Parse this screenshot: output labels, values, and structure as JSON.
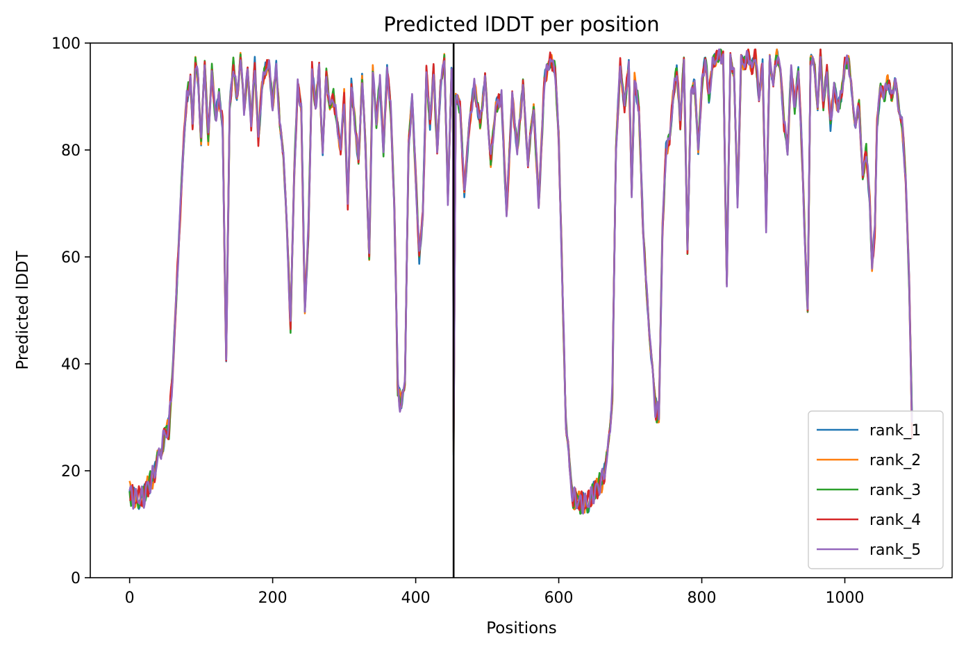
{
  "chart_data": {
    "type": "line",
    "title": "Predicted lDDT per position",
    "xlabel": "Positions",
    "ylabel": "Predicted lDDT",
    "xlim": [
      -55,
      1150
    ],
    "ylim": [
      0,
      100
    ],
    "xticks": [
      0,
      200,
      400,
      600,
      800,
      1000
    ],
    "yticks": [
      0,
      20,
      40,
      60,
      80,
      100
    ],
    "grid": false,
    "legend_position": "lower right",
    "vertical_line": {
      "x": 453,
      "color": "#000000"
    },
    "base_profile": [
      [
        0,
        16
      ],
      [
        5,
        15
      ],
      [
        10,
        15
      ],
      [
        15,
        15
      ],
      [
        20,
        15
      ],
      [
        25,
        17
      ],
      [
        30,
        18
      ],
      [
        35,
        20
      ],
      [
        40,
        22
      ],
      [
        45,
        25
      ],
      [
        50,
        27
      ],
      [
        55,
        28
      ],
      [
        60,
        38
      ],
      [
        65,
        52
      ],
      [
        70,
        66
      ],
      [
        75,
        80
      ],
      [
        80,
        90
      ],
      [
        85,
        93
      ],
      [
        88,
        85
      ],
      [
        92,
        96
      ],
      [
        96,
        93
      ],
      [
        100,
        82
      ],
      [
        105,
        96
      ],
      [
        110,
        82
      ],
      [
        115,
        95
      ],
      [
        120,
        86
      ],
      [
        125,
        90
      ],
      [
        130,
        85
      ],
      [
        135,
        41
      ],
      [
        140,
        88
      ],
      [
        145,
        96
      ],
      [
        150,
        90
      ],
      [
        155,
        97
      ],
      [
        160,
        88
      ],
      [
        165,
        95
      ],
      [
        170,
        85
      ],
      [
        175,
        96
      ],
      [
        180,
        82
      ],
      [
        185,
        92
      ],
      [
        190,
        95
      ],
      [
        195,
        96
      ],
      [
        200,
        88
      ],
      [
        205,
        96
      ],
      [
        210,
        84
      ],
      [
        215,
        80
      ],
      [
        220,
        65
      ],
      [
        225,
        47
      ],
      [
        230,
        75
      ],
      [
        235,
        92
      ],
      [
        240,
        88
      ],
      [
        245,
        50
      ],
      [
        250,
        65
      ],
      [
        255,
        95
      ],
      [
        260,
        88
      ],
      [
        265,
        95
      ],
      [
        270,
        80
      ],
      [
        275,
        94
      ],
      [
        280,
        88
      ],
      [
        285,
        90
      ],
      [
        290,
        85
      ],
      [
        295,
        80
      ],
      [
        300,
        90
      ],
      [
        305,
        70
      ],
      [
        310,
        92
      ],
      [
        315,
        85
      ],
      [
        320,
        78
      ],
      [
        325,
        93
      ],
      [
        330,
        80
      ],
      [
        335,
        60
      ],
      [
        340,
        95
      ],
      [
        345,
        85
      ],
      [
        350,
        93
      ],
      [
        355,
        80
      ],
      [
        360,
        95
      ],
      [
        365,
        88
      ],
      [
        370,
        70
      ],
      [
        375,
        36
      ],
      [
        380,
        31
      ],
      [
        385,
        38
      ],
      [
        390,
        80
      ],
      [
        395,
        90
      ],
      [
        400,
        75
      ],
      [
        405,
        60
      ],
      [
        410,
        68
      ],
      [
        415,
        95
      ],
      [
        420,
        85
      ],
      [
        425,
        95
      ],
      [
        430,
        80
      ],
      [
        435,
        92
      ],
      [
        440,
        98
      ],
      [
        445,
        70
      ],
      [
        450,
        95
      ],
      [
        452,
        94
      ],
      [
        453,
        25
      ],
      [
        456,
        90
      ],
      [
        462,
        88
      ],
      [
        468,
        72
      ],
      [
        475,
        85
      ],
      [
        482,
        92
      ],
      [
        490,
        85
      ],
      [
        497,
        93
      ],
      [
        505,
        78
      ],
      [
        512,
        88
      ],
      [
        520,
        90
      ],
      [
        527,
        68
      ],
      [
        535,
        90
      ],
      [
        542,
        80
      ],
      [
        550,
        92
      ],
      [
        557,
        78
      ],
      [
        565,
        88
      ],
      [
        572,
        70
      ],
      [
        580,
        93
      ],
      [
        588,
        97
      ],
      [
        595,
        95
      ],
      [
        600,
        82
      ],
      [
        605,
        55
      ],
      [
        610,
        30
      ],
      [
        615,
        20
      ],
      [
        620,
        15
      ],
      [
        630,
        14
      ],
      [
        640,
        14
      ],
      [
        650,
        16
      ],
      [
        660,
        18
      ],
      [
        668,
        22
      ],
      [
        675,
        35
      ],
      [
        680,
        80
      ],
      [
        686,
        96
      ],
      [
        692,
        88
      ],
      [
        698,
        96
      ],
      [
        702,
        72
      ],
      [
        706,
        93
      ],
      [
        712,
        88
      ],
      [
        718,
        65
      ],
      [
        722,
        55
      ],
      [
        726,
        48
      ],
      [
        730,
        40
      ],
      [
        735,
        32
      ],
      [
        740,
        30
      ],
      [
        745,
        65
      ],
      [
        750,
        80
      ],
      [
        755,
        82
      ],
      [
        760,
        90
      ],
      [
        765,
        95
      ],
      [
        770,
        85
      ],
      [
        775,
        97
      ],
      [
        780,
        62
      ],
      [
        785,
        90
      ],
      [
        790,
        93
      ],
      [
        795,
        80
      ],
      [
        800,
        92
      ],
      [
        805,
        97
      ],
      [
        810,
        90
      ],
      [
        815,
        96
      ],
      [
        820,
        97
      ],
      [
        825,
        98
      ],
      [
        830,
        97
      ],
      [
        835,
        55
      ],
      [
        840,
        97
      ],
      [
        845,
        95
      ],
      [
        850,
        70
      ],
      [
        855,
        97
      ],
      [
        860,
        96
      ],
      [
        865,
        98
      ],
      [
        870,
        95
      ],
      [
        875,
        98
      ],
      [
        880,
        90
      ],
      [
        885,
        96
      ],
      [
        890,
        66
      ],
      [
        895,
        98
      ],
      [
        900,
        92
      ],
      [
        905,
        98
      ],
      [
        910,
        95
      ],
      [
        915,
        85
      ],
      [
        920,
        80
      ],
      [
        925,
        95
      ],
      [
        930,
        88
      ],
      [
        935,
        95
      ],
      [
        940,
        80
      ],
      [
        945,
        60
      ],
      [
        948,
        50
      ],
      [
        952,
        97
      ],
      [
        958,
        95
      ],
      [
        962,
        88
      ],
      [
        966,
        98
      ],
      [
        970,
        88
      ],
      [
        975,
        95
      ],
      [
        980,
        85
      ],
      [
        985,
        92
      ],
      [
        990,
        88
      ],
      [
        995,
        90
      ],
      [
        1000,
        96
      ],
      [
        1005,
        97
      ],
      [
        1010,
        90
      ],
      [
        1015,
        85
      ],
      [
        1020,
        88
      ],
      [
        1025,
        75
      ],
      [
        1030,
        80
      ],
      [
        1035,
        70
      ],
      [
        1038,
        58
      ],
      [
        1042,
        65
      ],
      [
        1045,
        85
      ],
      [
        1050,
        92
      ],
      [
        1055,
        90
      ],
      [
        1060,
        93
      ],
      [
        1065,
        90
      ],
      [
        1070,
        93
      ],
      [
        1075,
        88
      ],
      [
        1080,
        85
      ],
      [
        1085,
        75
      ],
      [
        1090,
        55
      ],
      [
        1094,
        28
      ]
    ],
    "series": [
      {
        "name": "rank_1",
        "color": "#1f77b4"
      },
      {
        "name": "rank_2",
        "color": "#ff7f0e"
      },
      {
        "name": "rank_3",
        "color": "#2ca02c"
      },
      {
        "name": "rank_4",
        "color": "#d62728"
      },
      {
        "name": "rank_5",
        "color": "#9467bd"
      }
    ]
  }
}
